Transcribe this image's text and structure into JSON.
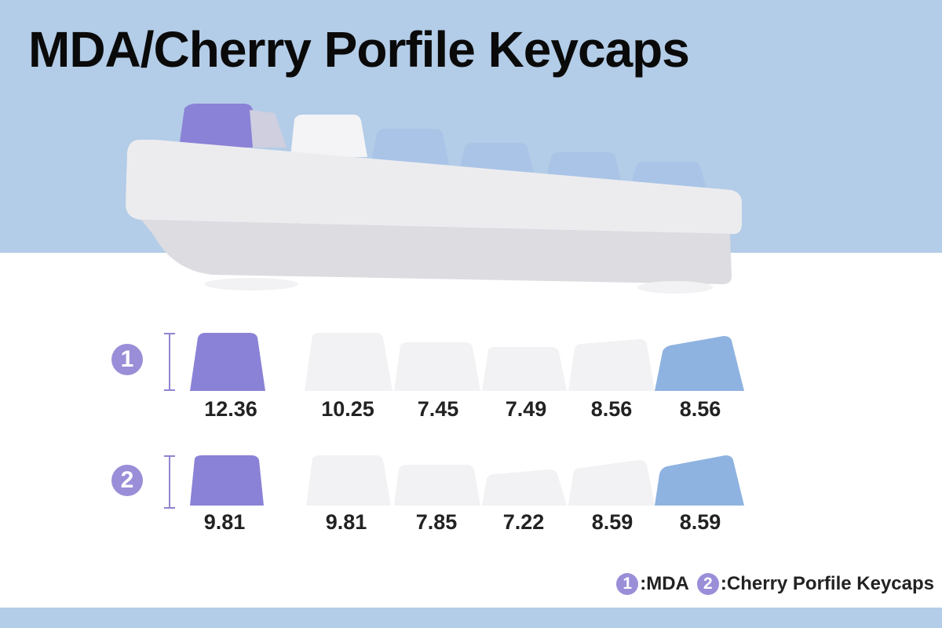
{
  "title": "MDA/Cherry Porfile Keycaps",
  "colors": {
    "background_band": "#b3cce7",
    "purple_keycap": "#8a82d6",
    "white_keycap": "#f2f2f4",
    "blue_keycap": "#8fb3e0",
    "badge": "#9a8ed8"
  },
  "rows": [
    {
      "badge": "1",
      "profile": "MDA",
      "keycaps": [
        {
          "color": "purple",
          "height_mm": "12.36"
        },
        {
          "color": "white",
          "height_mm": "10.25"
        },
        {
          "color": "white",
          "height_mm": "7.45"
        },
        {
          "color": "white",
          "height_mm": "7.49"
        },
        {
          "color": "white",
          "height_mm": "8.56"
        },
        {
          "color": "blue",
          "height_mm": "8.56"
        }
      ]
    },
    {
      "badge": "2",
      "profile": "Cherry",
      "keycaps": [
        {
          "color": "purple",
          "height_mm": "9.81"
        },
        {
          "color": "white",
          "height_mm": "9.81"
        },
        {
          "color": "white",
          "height_mm": "7.85"
        },
        {
          "color": "white",
          "height_mm": "7.22"
        },
        {
          "color": "white",
          "height_mm": "8.59"
        },
        {
          "color": "blue",
          "height_mm": "8.59"
        }
      ]
    }
  ],
  "legend": {
    "item1_badge": "1",
    "item1_label": ":MDA",
    "item2_badge": "2",
    "item2_label": ":Cherry Porfile Keycaps"
  }
}
